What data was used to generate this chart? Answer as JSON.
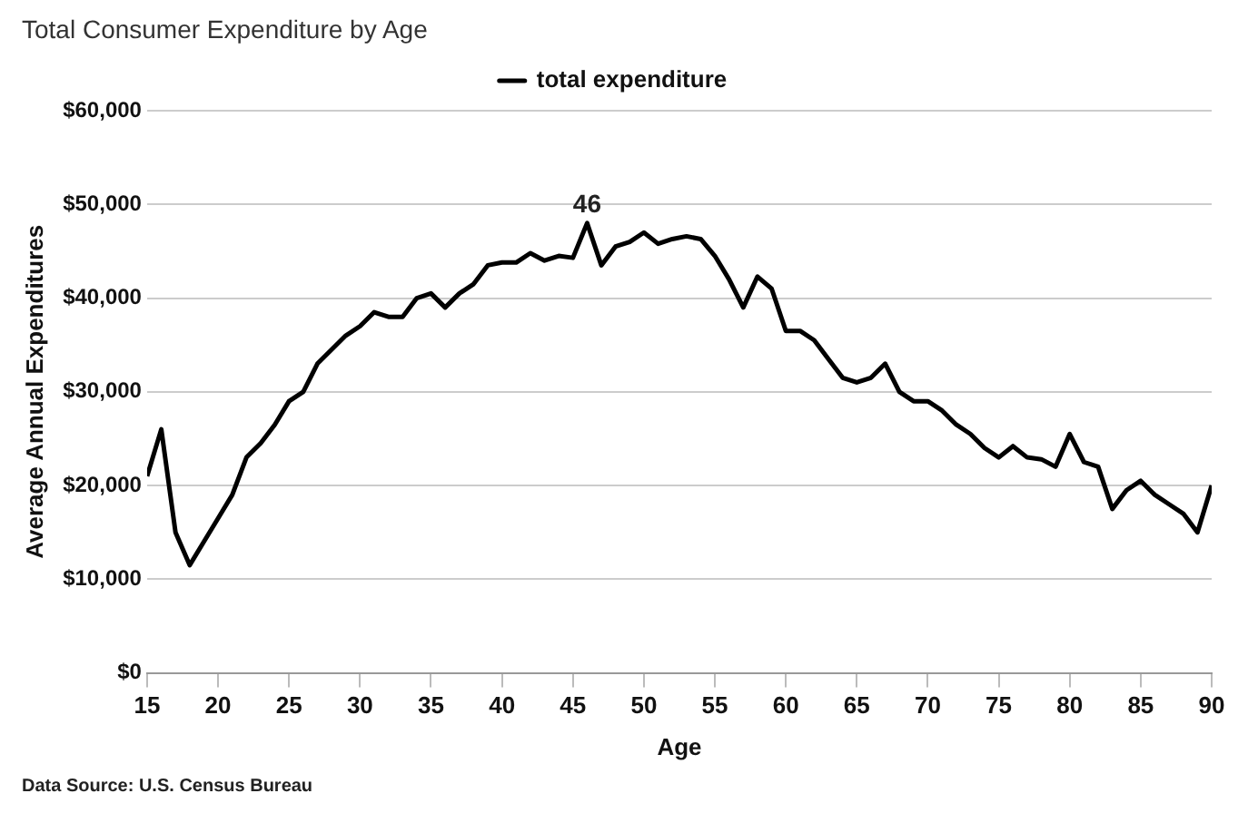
{
  "chart_data": {
    "type": "line",
    "title": "Total Consumer Expenditure by Age",
    "xlabel": "Age",
    "ylabel": "Average Annual Expenditures",
    "x": [
      15,
      16,
      17,
      18,
      19,
      20,
      21,
      22,
      23,
      24,
      25,
      26,
      27,
      28,
      29,
      30,
      31,
      32,
      33,
      34,
      35,
      36,
      37,
      38,
      39,
      40,
      41,
      42,
      43,
      44,
      45,
      46,
      47,
      48,
      49,
      50,
      51,
      52,
      53,
      54,
      55,
      56,
      57,
      58,
      59,
      60,
      61,
      62,
      63,
      64,
      65,
      66,
      67,
      68,
      69,
      70,
      71,
      72,
      73,
      74,
      75,
      76,
      77,
      78,
      79,
      80,
      81,
      82,
      83,
      84,
      85,
      86,
      87,
      88,
      89,
      90
    ],
    "series": [
      {
        "name": "total expenditure",
        "color": "#000000",
        "values": [
          21000,
          26000,
          15000,
          11500,
          14000,
          16500,
          19000,
          23000,
          24500,
          26500,
          29000,
          30000,
          33000,
          34500,
          36000,
          37000,
          38500,
          38000,
          38000,
          40000,
          40500,
          39000,
          40500,
          41500,
          43500,
          43800,
          43800,
          44800,
          44000,
          44500,
          44300,
          48000,
          43500,
          45500,
          46000,
          47000,
          45800,
          46300,
          46600,
          46300,
          44500,
          42000,
          39000,
          42300,
          41000,
          36500,
          36500,
          35500,
          33500,
          31500,
          31000,
          31500,
          33000,
          30000,
          29000,
          29000,
          28000,
          26500,
          25500,
          24000,
          23000,
          24200,
          23000,
          22800,
          22000,
          25500,
          22500,
          22000,
          17500,
          19500,
          20500,
          19000,
          18000,
          17000,
          15000,
          20000
        ]
      }
    ],
    "xlim": [
      15,
      90
    ],
    "xticks": [
      15,
      20,
      25,
      30,
      35,
      40,
      45,
      50,
      55,
      60,
      65,
      70,
      75,
      80,
      85,
      90
    ],
    "ylim": [
      0,
      60000
    ],
    "yticks": [
      {
        "value": 0,
        "label": "$0"
      },
      {
        "value": 10000,
        "label": "$10,000"
      },
      {
        "value": 20000,
        "label": "$20,000"
      },
      {
        "value": 30000,
        "label": "$30,000"
      },
      {
        "value": 40000,
        "label": "$40,000"
      },
      {
        "value": 50000,
        "label": "$50,000"
      },
      {
        "value": 60000,
        "label": "$60,000"
      }
    ],
    "grid": "y",
    "legend": "top",
    "marker": "none",
    "line_style": "solid",
    "annotations": [
      {
        "text": "46",
        "x": 46,
        "y": 48000
      },
      "Data Source: U.S. Census Bureau"
    ]
  }
}
